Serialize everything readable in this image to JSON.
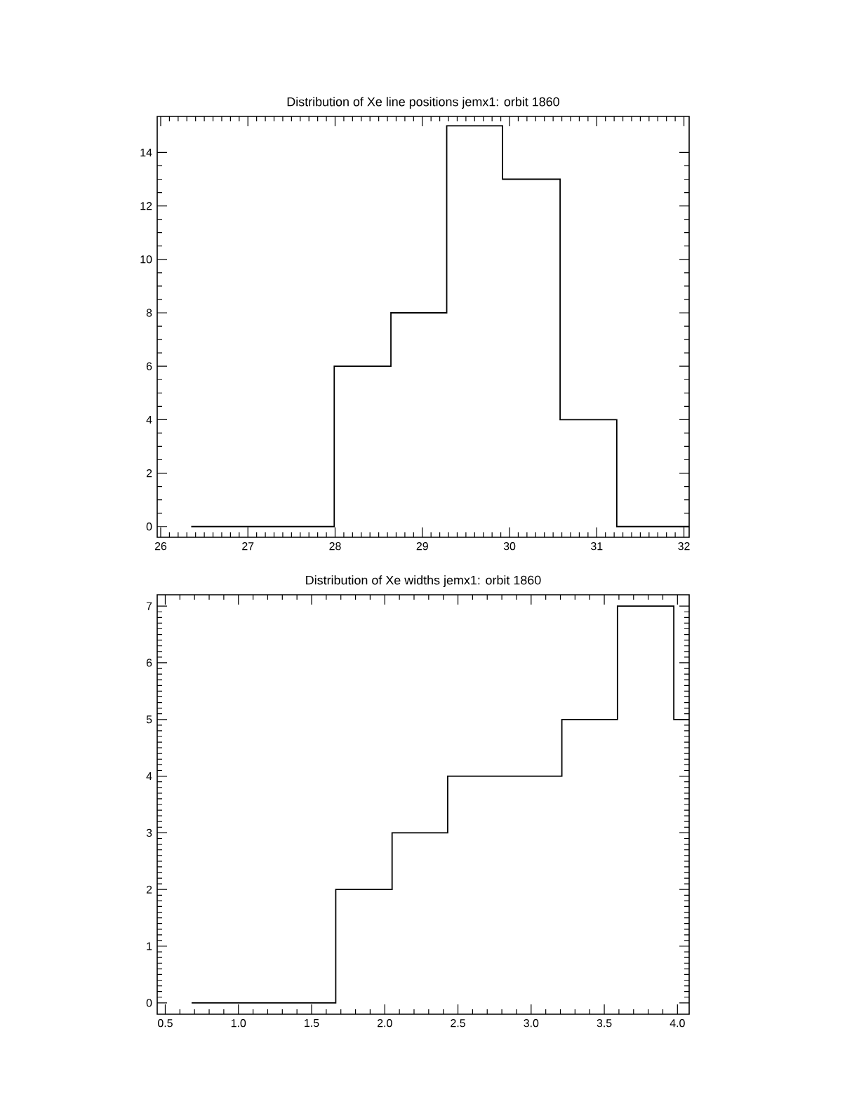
{
  "chart_data": [
    {
      "type": "histogram",
      "title": "Distribution of Xe line positions jemx1: orbit 1860",
      "bins": [
        26.35,
        27.99,
        28.64,
        29.28,
        29.92,
        30.58,
        31.23,
        32.06
      ],
      "values": [
        0,
        6,
        8,
        15,
        13,
        4,
        0
      ],
      "color": "#000000",
      "xlim": [
        25.96,
        32.06
      ],
      "ylim": [
        -0.4,
        15.35
      ],
      "xticks": [
        26,
        27,
        28,
        29,
        30,
        31,
        32
      ],
      "yticks": [
        0,
        2,
        4,
        6,
        8,
        10,
        12,
        14
      ],
      "grid": false
    },
    {
      "type": "histogram",
      "title": "Distribution of Xe widths jemx1: orbit 1860",
      "bins": [
        0.68,
        1.665,
        2.05,
        2.43,
        2.82,
        3.21,
        3.59,
        3.975,
        4.08
      ],
      "values": [
        0,
        2,
        3,
        4,
        4,
        5,
        7,
        5
      ],
      "color": "#000000",
      "xlim": [
        0.445,
        4.08
      ],
      "ylim": [
        -0.2,
        7.2
      ],
      "xticks": [
        {
          "value": 0.5,
          "label": "0.5"
        },
        {
          "value": 1,
          "label": "1.0"
        },
        {
          "value": 1.5,
          "label": "1.5"
        },
        {
          "value": 2,
          "label": "2.0"
        },
        {
          "value": 2.5,
          "label": "2.5"
        },
        {
          "value": 3,
          "label": "3.0"
        },
        {
          "value": 3.5,
          "label": "3.5"
        },
        {
          "value": 4,
          "label": "4.0"
        }
      ],
      "yticks": [
        0,
        1,
        2,
        3,
        4,
        5,
        6,
        7
      ],
      "grid": false
    }
  ]
}
